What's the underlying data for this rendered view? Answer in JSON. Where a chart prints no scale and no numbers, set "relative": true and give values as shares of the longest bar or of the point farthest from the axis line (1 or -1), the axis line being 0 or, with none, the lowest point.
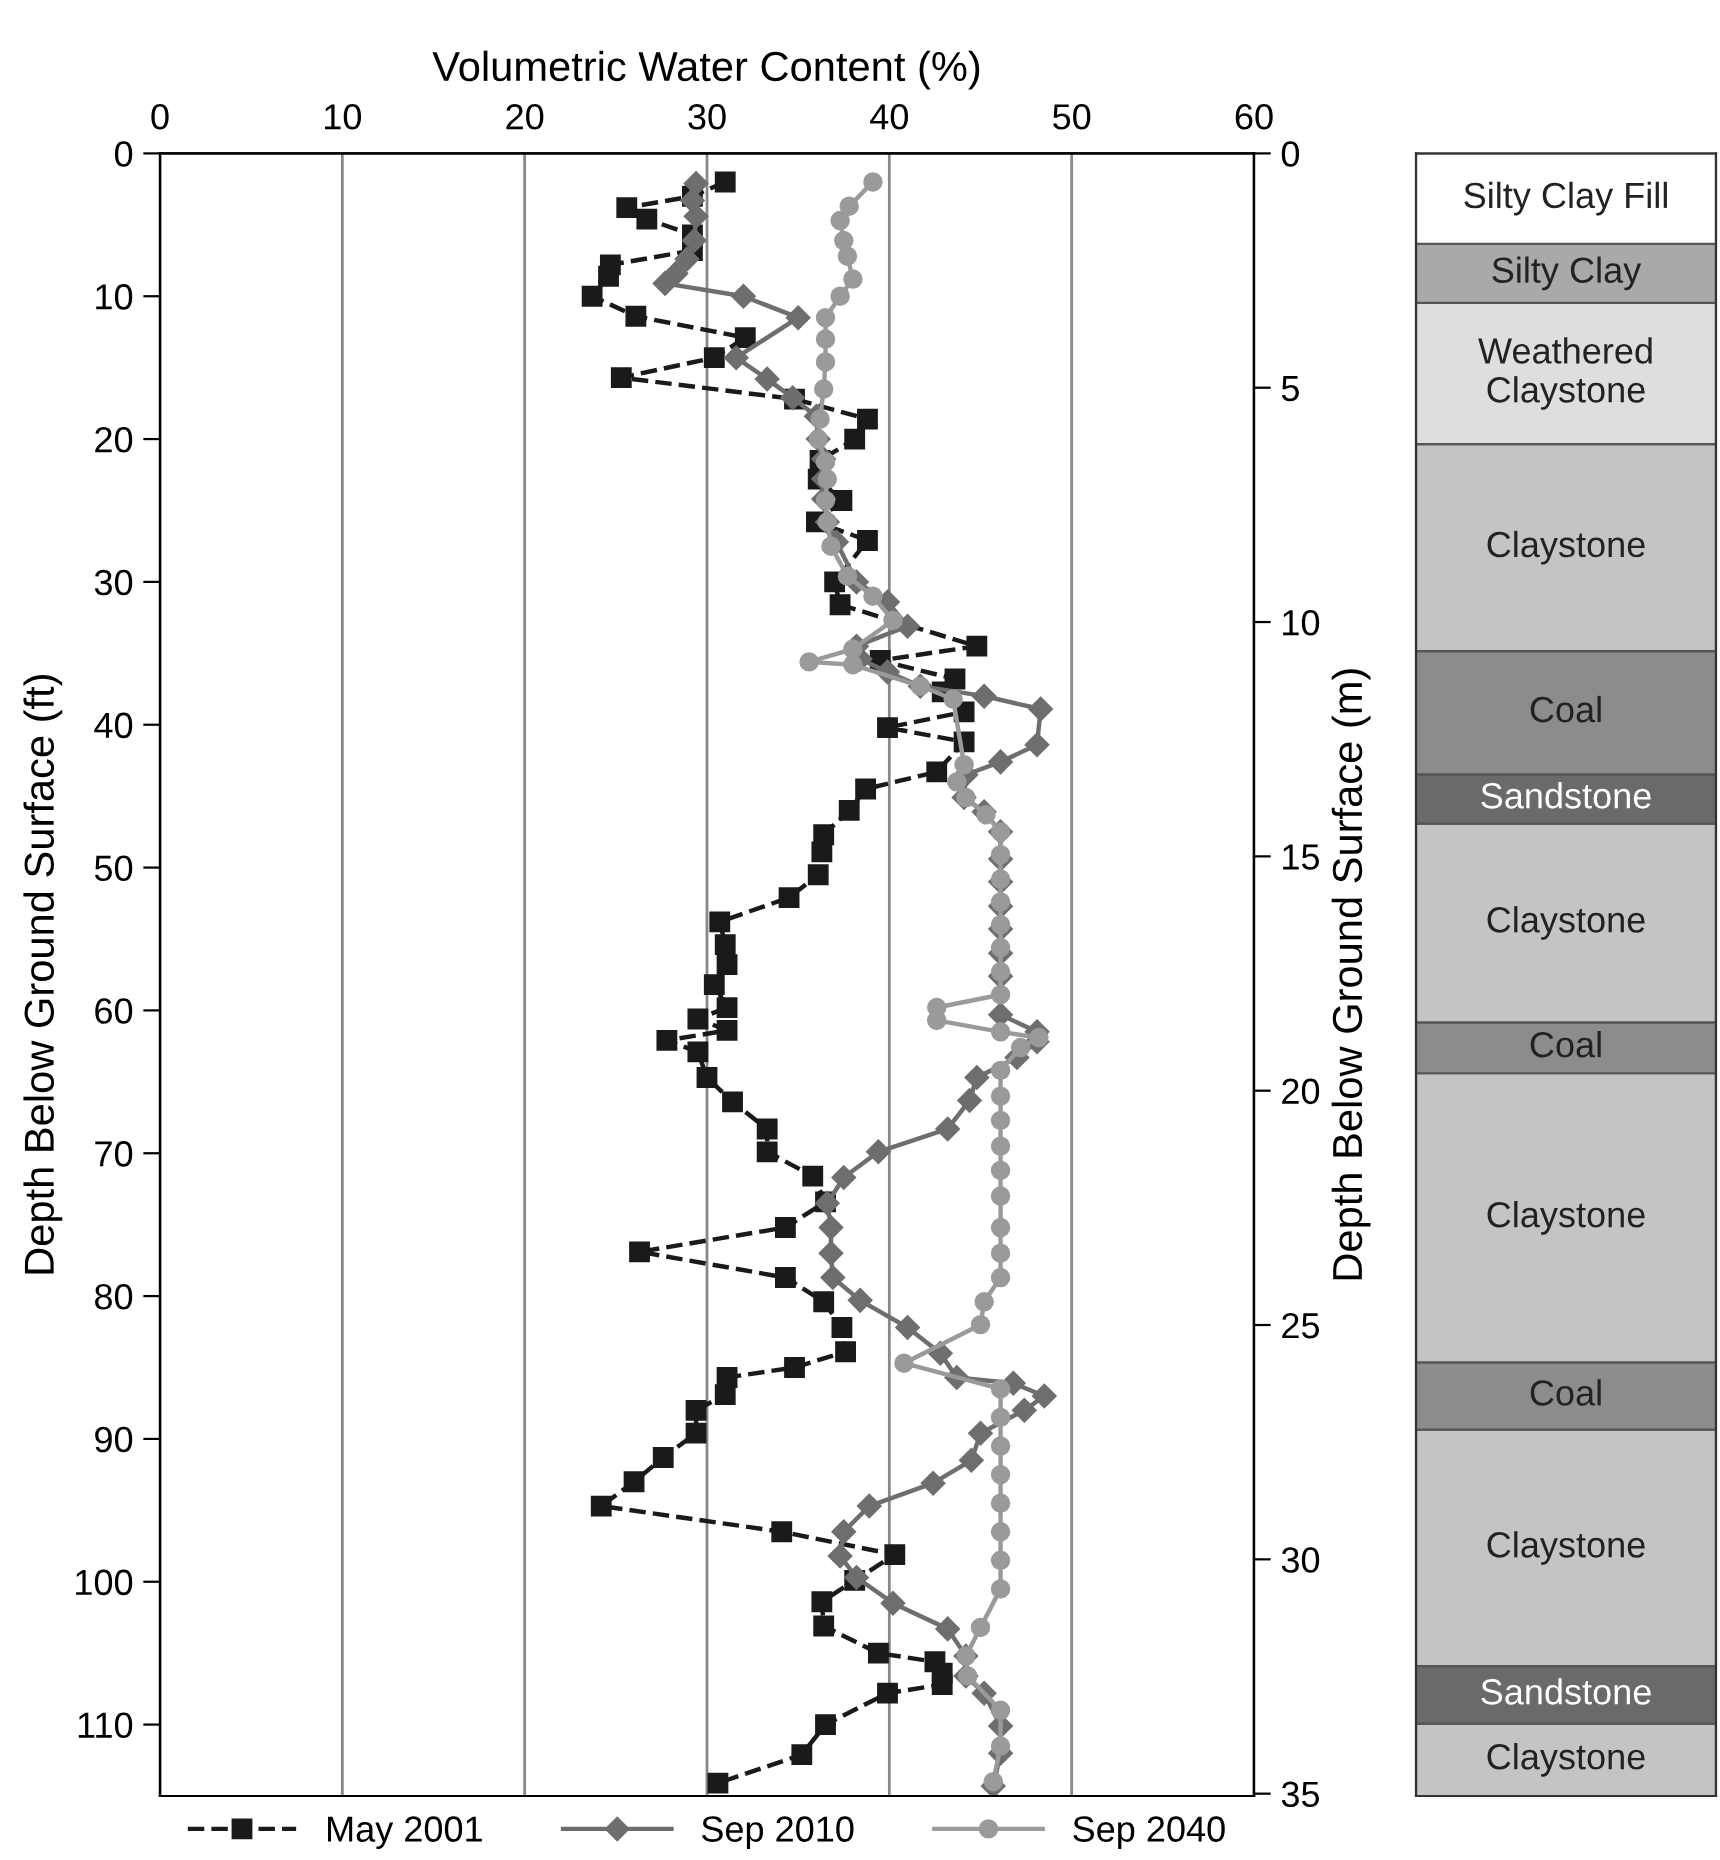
{
  "chart_data": [
    {
      "type": "line",
      "xlabel": "Volumetric Water Content (%)",
      "ylabel": "Depth Below Ground Surface (ft)",
      "y2label": "Depth Below Ground Surface (m)",
      "xlim": [
        0,
        60
      ],
      "xticks": [
        0,
        10,
        20,
        30,
        40,
        50,
        60
      ],
      "ylim": [
        115,
        0
      ],
      "yticks": [
        0,
        10,
        20,
        30,
        40,
        50,
        60,
        70,
        80,
        90,
        100,
        110
      ],
      "y2lim": [
        35.05,
        0
      ],
      "y2ticks": [
        0,
        5,
        10,
        15,
        20,
        25,
        30,
        35
      ],
      "grid": "x",
      "legend": "bottom",
      "series": [
        {
          "name": "May 2001",
          "color": "#1a1a1a",
          "marker": "square",
          "line_style": "dashed",
          "x": [
            31.0,
            29.2,
            25.6,
            26.7,
            29.2,
            29.2,
            24.7,
            24.6,
            23.7,
            26.1,
            32.1,
            30.4,
            25.3,
            34.8,
            38.8,
            38.1,
            36.2,
            36.1,
            37.4,
            36.0,
            38.8,
            37.0,
            37.3,
            44.8,
            39.5,
            43.6,
            42.9,
            44.1,
            39.9,
            44.1,
            42.6,
            38.7,
            37.8,
            36.4,
            36.3,
            36.1,
            34.5,
            30.7,
            31.0,
            31.1,
            30.4,
            31.1,
            29.5,
            31.1,
            27.8,
            29.5,
            30.0,
            31.4,
            33.3,
            33.3,
            35.8,
            36.5,
            34.3,
            26.3,
            34.3,
            36.4,
            37.4,
            37.6,
            34.8,
            31.1,
            31.0,
            29.4,
            29.4,
            27.6,
            26.0,
            24.2,
            34.1,
            40.3,
            38.1,
            36.3,
            36.4,
            39.4,
            42.5,
            42.9,
            42.9,
            39.9,
            36.5,
            35.2,
            30.6
          ],
          "values": [
            2.0,
            3.0,
            3.8,
            4.6,
            5.7,
            6.8,
            7.8,
            8.6,
            10.0,
            11.4,
            12.9,
            14.3,
            15.7,
            17.2,
            18.6,
            20.0,
            21.5,
            22.8,
            24.3,
            25.8,
            27.1,
            30.0,
            31.6,
            34.5,
            35.5,
            36.8,
            37.7,
            39.1,
            40.2,
            41.2,
            43.3,
            44.5,
            46.0,
            47.7,
            48.9,
            50.5,
            52.1,
            53.8,
            55.4,
            56.8,
            58.2,
            59.8,
            60.6,
            61.4,
            62.1,
            62.9,
            64.7,
            66.4,
            68.3,
            69.9,
            71.6,
            73.4,
            75.2,
            76.9,
            78.7,
            80.4,
            82.2,
            83.9,
            85.0,
            85.7,
            86.9,
            88.0,
            89.6,
            91.3,
            93.0,
            94.7,
            96.5,
            98.1,
            99.9,
            101.4,
            103.1,
            105.0,
            105.6,
            106.4,
            107.2,
            107.8,
            110.0,
            112.1,
            114.1
          ]
        },
        {
          "name": "Sep 2010",
          "color": "#6e6e6e",
          "marker": "diamond",
          "line_style": "solid",
          "x": [
            29.4,
            29.2,
            29.4,
            29.3,
            28.9,
            28.3,
            27.7,
            32.0,
            35.0,
            31.6,
            33.3,
            34.7,
            36.0,
            36.1,
            36.4,
            36.4,
            36.4,
            36.6,
            37.1,
            38.2,
            39.9,
            41.0,
            38.2,
            38.4,
            39.9,
            41.7,
            45.2,
            48.3,
            48.1,
            46.1,
            44.2,
            44.1,
            45.2,
            46.1,
            46.1,
            46.1,
            46.1,
            46.1,
            46.1,
            46.1,
            46.1,
            48.1,
            48.1,
            47.0,
            44.8,
            44.4,
            43.2,
            39.4,
            37.5,
            36.6,
            36.8,
            36.8,
            36.9,
            38.4,
            41.0,
            42.8,
            43.7,
            46.8,
            48.5,
            47.4,
            45.0,
            44.5,
            42.4,
            38.9,
            37.5,
            37.3,
            38.2,
            40.2,
            43.2,
            44.2,
            44.2,
            45.2,
            46.1,
            46.1,
            45.7
          ],
          "values": [
            2.1,
            3.3,
            4.4,
            6.1,
            7.4,
            8.4,
            9.1,
            10.0,
            11.5,
            14.3,
            15.8,
            17.1,
            18.4,
            20.0,
            21.4,
            22.8,
            24.2,
            25.8,
            27.2,
            30.0,
            31.4,
            33.1,
            34.5,
            35.4,
            36.3,
            37.3,
            38.0,
            38.9,
            41.4,
            42.6,
            43.5,
            45.1,
            46.1,
            47.5,
            49.4,
            51.0,
            52.7,
            54.3,
            56.0,
            57.6,
            60.3,
            61.5,
            62.2,
            63.3,
            64.7,
            66.3,
            68.3,
            69.9,
            71.7,
            73.5,
            75.2,
            77.0,
            78.7,
            80.3,
            82.2,
            84.0,
            85.7,
            86.1,
            87.0,
            88.0,
            89.6,
            91.5,
            93.1,
            94.7,
            96.5,
            98.2,
            99.7,
            101.5,
            103.3,
            105.2,
            106.6,
            107.8,
            110.1,
            112.0,
            114.3
          ]
        },
        {
          "name": "Sep 2040",
          "color": "#9a9a9a",
          "marker": "circle",
          "line_style": "solid",
          "x": [
            39.1,
            37.8,
            37.3,
            37.5,
            37.7,
            38.0,
            37.3,
            36.5,
            36.5,
            36.5,
            36.4,
            36.2,
            36.1,
            36.5,
            36.6,
            36.5,
            36.6,
            36.8,
            37.7,
            39.1,
            40.2,
            38.0,
            35.6,
            38.0,
            41.7,
            43.5,
            44.1,
            43.7,
            44.2,
            45.3,
            46.1,
            46.1,
            46.1,
            46.1,
            46.1,
            46.1,
            46.1,
            46.1,
            42.6,
            42.6,
            46.1,
            48.2,
            47.2,
            46.1,
            46.1,
            46.1,
            46.1,
            46.1,
            46.1,
            46.1,
            46.1,
            46.1,
            45.2,
            45.0,
            40.8,
            46.1,
            46.1,
            46.1,
            46.1,
            46.1,
            46.1,
            46.1,
            46.1,
            45.0,
            44.2,
            44.3,
            46.1,
            46.1,
            45.7
          ],
          "values": [
            2.0,
            3.7,
            4.7,
            6.1,
            7.2,
            8.8,
            10.0,
            11.5,
            13.0,
            14.6,
            16.5,
            18.6,
            20.0,
            21.6,
            22.8,
            24.3,
            25.8,
            27.5,
            29.6,
            31.0,
            32.7,
            34.7,
            35.6,
            35.8,
            37.3,
            38.2,
            42.8,
            44.0,
            45.1,
            46.3,
            47.5,
            49.1,
            50.8,
            52.4,
            54.0,
            55.6,
            57.3,
            58.9,
            59.8,
            60.7,
            61.5,
            61.9,
            62.6,
            64.2,
            66.0,
            67.7,
            69.5,
            71.2,
            73.0,
            75.2,
            77.0,
            78.7,
            80.4,
            82.0,
            84.7,
            86.5,
            88.5,
            90.5,
            92.5,
            94.5,
            96.5,
            98.5,
            100.5,
            103.2,
            105.2,
            106.6,
            109.0,
            111.5,
            114.0
          ]
        }
      ]
    },
    {
      "type": "bar",
      "stacked": true,
      "relative": true,
      "categories": [
        null
      ],
      "tick_labels": false,
      "series": [
        {
          "name": "Claystone",
          "color": "#c4c4c4",
          "values": [
            0.044
          ]
        },
        {
          "name": "Sandstone",
          "color": "#6a6a6a",
          "values": [
            0.035
          ]
        },
        {
          "name": "Claystone",
          "color": "#c4c4c4",
          "values": [
            0.144
          ]
        },
        {
          "name": "Coal",
          "color": "#8c8c8c",
          "values": [
            0.041
          ]
        },
        {
          "name": "Claystone",
          "color": "#c4c4c4",
          "values": [
            0.176
          ]
        },
        {
          "name": "Coal",
          "color": "#8c8c8c",
          "values": [
            0.031
          ]
        },
        {
          "name": "Claystone",
          "color": "#c4c4c4",
          "values": [
            0.121
          ]
        },
        {
          "name": "Sandstone",
          "color": "#6a6a6a",
          "values": [
            0.03
          ]
        },
        {
          "name": "Coal",
          "color": "#8c8c8c",
          "values": [
            0.075
          ]
        },
        {
          "name": "Claystone",
          "color": "#c4c4c4",
          "values": [
            0.126
          ]
        },
        {
          "name": "Weathered Claystone",
          "color": "#dedede",
          "values": [
            0.086
          ]
        },
        {
          "name": "Silty Clay",
          "color": "#a9a9a9",
          "values": [
            0.036
          ]
        },
        {
          "name": "Silty Clay Fill",
          "color": "#ffffff",
          "values": [
            0.055
          ]
        }
      ]
    }
  ]
}
